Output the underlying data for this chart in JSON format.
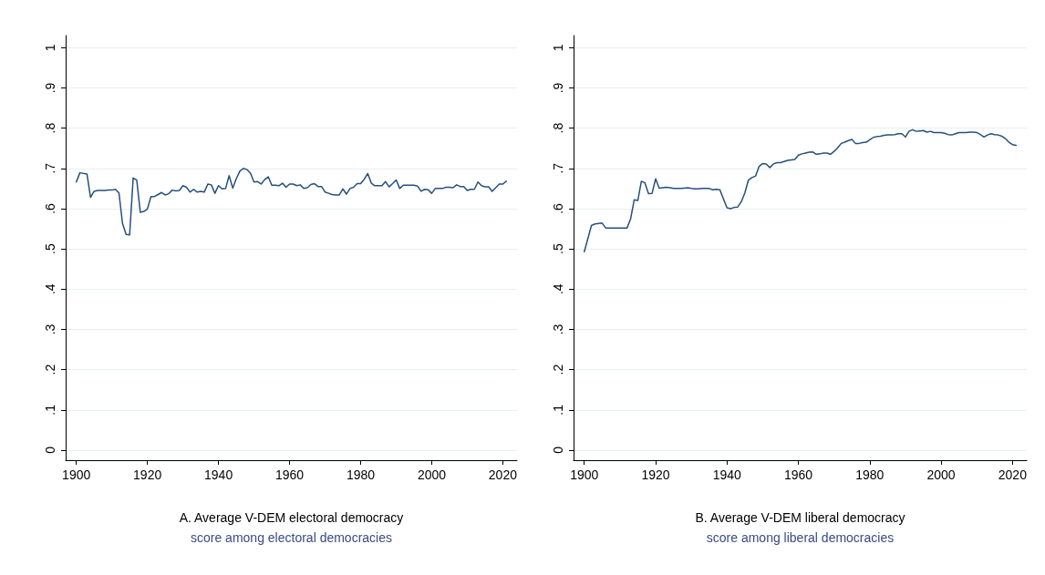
{
  "chart_data": [
    {
      "type": "line",
      "xlabel": "A. Average V-DEM electoral democracy",
      "subtitle": "score among electoral democracies",
      "color": "#26507c",
      "grid": "y",
      "xlim": [
        1897,
        2024
      ],
      "xticks": [
        1900,
        1920,
        1940,
        1960,
        1980,
        2000,
        2020
      ],
      "ylim": [
        -0.025,
        1.03
      ],
      "yticks": [
        {
          "value": 0,
          "label": "0"
        },
        {
          "value": 0.1,
          "label": ".1"
        },
        {
          "value": 0.2,
          "label": ".2"
        },
        {
          "value": 0.3,
          "label": ".3"
        },
        {
          "value": 0.4,
          "label": ".4"
        },
        {
          "value": 0.5,
          "label": ".5"
        },
        {
          "value": 0.6,
          "label": ".6"
        },
        {
          "value": 0.7,
          "label": ".7"
        },
        {
          "value": 0.8,
          "label": ".8"
        },
        {
          "value": 0.9,
          "label": ".9"
        },
        {
          "value": 1,
          "label": "1"
        }
      ],
      "x": [
        1900,
        1901,
        1903,
        1904,
        1905,
        1906,
        1907,
        1908,
        1909,
        1910,
        1911,
        1912,
        1913,
        1914,
        1915,
        1916,
        1917,
        1918,
        1919,
        1920,
        1921,
        1922,
        1923,
        1924,
        1925,
        1926,
        1927,
        1928,
        1929,
        1930,
        1931,
        1932,
        1933,
        1934,
        1935,
        1936,
        1937,
        1938,
        1939,
        1940,
        1941,
        1942,
        1943,
        1944,
        1945,
        1946,
        1947,
        1948,
        1949,
        1950,
        1951,
        1952,
        1953,
        1954,
        1955,
        1956,
        1957,
        1958,
        1959,
        1960,
        1961,
        1962,
        1963,
        1964,
        1965,
        1966,
        1967,
        1968,
        1969,
        1970,
        1971,
        1972,
        1973,
        1974,
        1975,
        1976,
        1977,
        1978,
        1979,
        1980,
        1981,
        1982,
        1983,
        1984,
        1985,
        1986,
        1987,
        1988,
        1989,
        1990,
        1991,
        1992,
        1993,
        1994,
        1995,
        1996,
        1997,
        1998,
        1999,
        2000,
        2001,
        2002,
        2003,
        2004,
        2005,
        2006,
        2007,
        2008,
        2009,
        2010,
        2011,
        2012,
        2013,
        2014,
        2015,
        2016,
        2017,
        2018,
        2019,
        2020,
        2021
      ],
      "values": [
        0.666,
        0.689,
        0.686,
        0.628,
        0.643,
        0.645,
        0.645,
        0.645,
        0.646,
        0.646,
        0.648,
        0.639,
        0.563,
        0.536,
        0.535,
        0.676,
        0.671,
        0.591,
        0.593,
        0.599,
        0.63,
        0.63,
        0.635,
        0.64,
        0.634,
        0.637,
        0.646,
        0.644,
        0.645,
        0.657,
        0.653,
        0.641,
        0.648,
        0.641,
        0.643,
        0.641,
        0.661,
        0.659,
        0.638,
        0.657,
        0.649,
        0.65,
        0.682,
        0.651,
        0.674,
        0.693,
        0.7,
        0.697,
        0.688,
        0.666,
        0.667,
        0.661,
        0.672,
        0.679,
        0.658,
        0.658,
        0.657,
        0.663,
        0.653,
        0.661,
        0.661,
        0.657,
        0.659,
        0.65,
        0.652,
        0.66,
        0.662,
        0.655,
        0.655,
        0.641,
        0.638,
        0.635,
        0.634,
        0.634,
        0.649,
        0.636,
        0.65,
        0.653,
        0.662,
        0.662,
        0.673,
        0.687,
        0.663,
        0.657,
        0.657,
        0.657,
        0.667,
        0.654,
        0.662,
        0.671,
        0.65,
        0.658,
        0.658,
        0.658,
        0.658,
        0.656,
        0.643,
        0.648,
        0.647,
        0.638,
        0.65,
        0.65,
        0.65,
        0.653,
        0.653,
        0.652,
        0.659,
        0.655,
        0.655,
        0.645,
        0.648,
        0.648,
        0.666,
        0.657,
        0.654,
        0.654,
        0.643,
        0.652,
        0.661,
        0.661,
        0.668
      ]
    },
    {
      "type": "line",
      "xlabel": "B. Average V-DEM liberal democracy",
      "subtitle": "score among liberal democracies",
      "color": "#26507c",
      "grid": "y",
      "xlim": [
        1897,
        2024
      ],
      "xticks": [
        1900,
        1920,
        1940,
        1960,
        1980,
        2000,
        2020
      ],
      "ylim": [
        -0.025,
        1.03
      ],
      "yticks": [
        {
          "value": 0,
          "label": "0"
        },
        {
          "value": 0.1,
          "label": ".1"
        },
        {
          "value": 0.2,
          "label": ".2"
        },
        {
          "value": 0.3,
          "label": ".3"
        },
        {
          "value": 0.4,
          "label": ".4"
        },
        {
          "value": 0.5,
          "label": ".5"
        },
        {
          "value": 0.6,
          "label": ".6"
        },
        {
          "value": 0.7,
          "label": ".7"
        },
        {
          "value": 0.8,
          "label": ".8"
        },
        {
          "value": 0.9,
          "label": ".9"
        },
        {
          "value": 1,
          "label": "1"
        }
      ],
      "x": [
        1900,
        1901,
        1902,
        1903,
        1904,
        1905,
        1906,
        1907,
        1908,
        1909,
        1910,
        1911,
        1912,
        1913,
        1914,
        1915,
        1916,
        1917,
        1918,
        1919,
        1920,
        1921,
        1922,
        1923,
        1924,
        1925,
        1926,
        1927,
        1928,
        1929,
        1930,
        1931,
        1932,
        1933,
        1934,
        1935,
        1936,
        1937,
        1938,
        1939,
        1940,
        1941,
        1942,
        1943,
        1944,
        1945,
        1946,
        1947,
        1948,
        1949,
        1950,
        1951,
        1952,
        1953,
        1954,
        1955,
        1956,
        1957,
        1958,
        1959,
        1960,
        1961,
        1962,
        1963,
        1964,
        1965,
        1966,
        1967,
        1968,
        1969,
        1970,
        1971,
        1972,
        1973,
        1974,
        1975,
        1976,
        1977,
        1978,
        1979,
        1980,
        1981,
        1982,
        1983,
        1984,
        1985,
        1986,
        1987,
        1988,
        1989,
        1990,
        1991,
        1992,
        1993,
        1994,
        1995,
        1996,
        1997,
        1998,
        1999,
        2000,
        2001,
        2002,
        2003,
        2004,
        2005,
        2006,
        2007,
        2008,
        2009,
        2010,
        2011,
        2012,
        2013,
        2014,
        2015,
        2016,
        2017,
        2018,
        2019,
        2020,
        2021
      ],
      "values": [
        0.493,
        0.525,
        0.558,
        0.562,
        0.563,
        0.564,
        0.552,
        0.552,
        0.552,
        0.552,
        0.552,
        0.552,
        0.552,
        0.575,
        0.622,
        0.62,
        0.668,
        0.664,
        0.637,
        0.638,
        0.674,
        0.651,
        0.652,
        0.653,
        0.652,
        0.65,
        0.65,
        0.65,
        0.651,
        0.652,
        0.65,
        0.649,
        0.649,
        0.65,
        0.65,
        0.65,
        0.647,
        0.648,
        0.647,
        0.624,
        0.602,
        0.6,
        0.603,
        0.604,
        0.617,
        0.639,
        0.671,
        0.677,
        0.681,
        0.705,
        0.712,
        0.711,
        0.702,
        0.711,
        0.714,
        0.714,
        0.717,
        0.72,
        0.721,
        0.722,
        0.733,
        0.736,
        0.738,
        0.74,
        0.741,
        0.735,
        0.736,
        0.738,
        0.738,
        0.735,
        0.742,
        0.751,
        0.762,
        0.765,
        0.769,
        0.772,
        0.762,
        0.762,
        0.764,
        0.765,
        0.771,
        0.777,
        0.779,
        0.78,
        0.782,
        0.783,
        0.783,
        0.784,
        0.786,
        0.786,
        0.778,
        0.792,
        0.796,
        0.792,
        0.793,
        0.794,
        0.79,
        0.792,
        0.789,
        0.789,
        0.789,
        0.787,
        0.784,
        0.783,
        0.786,
        0.789,
        0.789,
        0.789,
        0.79,
        0.79,
        0.789,
        0.784,
        0.778,
        0.783,
        0.786,
        0.784,
        0.783,
        0.78,
        0.774,
        0.765,
        0.759,
        0.757
      ]
    }
  ]
}
